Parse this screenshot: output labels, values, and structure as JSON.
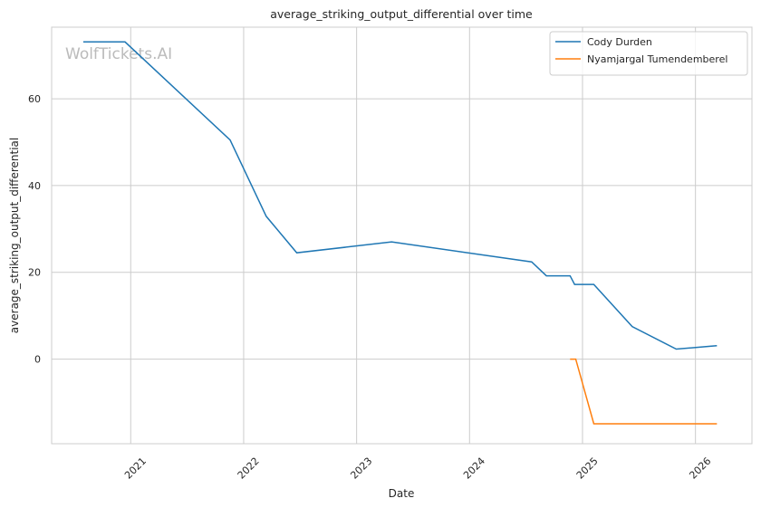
{
  "chart_data": {
    "type": "line",
    "title": "average_striking_output_differential over time",
    "xlabel": "Date",
    "ylabel": "average_striking_output_differential",
    "watermark": "WolfTickets.AI",
    "xlim": [
      2020.3,
      2026.5
    ],
    "ylim": [
      -19.5,
      76.5
    ],
    "xticks": [
      2021,
      2022,
      2023,
      2024,
      2025,
      2026
    ],
    "xtick_labels": [
      "2021",
      "2022",
      "2023",
      "2024",
      "2025",
      "2026"
    ],
    "yticks": [
      0,
      20,
      40,
      60
    ],
    "ytick_labels": [
      "0",
      "20",
      "40",
      "60"
    ],
    "grid": true,
    "legend_position": "top-right",
    "series": [
      {
        "name": "Cody Durden",
        "color": "#1f77b4",
        "x": [
          2020.58,
          2020.95,
          2021.88,
          2022.2,
          2022.47,
          2023.31,
          2024.55,
          2024.68,
          2024.89,
          2024.93,
          2025.1,
          2025.44,
          2025.83,
          2026.19
        ],
        "y": [
          73.1,
          73.1,
          50.5,
          32.9,
          24.5,
          27.0,
          22.4,
          19.2,
          19.2,
          17.2,
          17.2,
          7.5,
          2.3,
          3.1
        ]
      },
      {
        "name": "Nyamjargal Tumendemberel",
        "color": "#ff7f0e",
        "x": [
          2024.89,
          2024.94,
          2025.1,
          2026.19
        ],
        "y": [
          0,
          0,
          -14.9,
          -14.9
        ]
      }
    ]
  }
}
